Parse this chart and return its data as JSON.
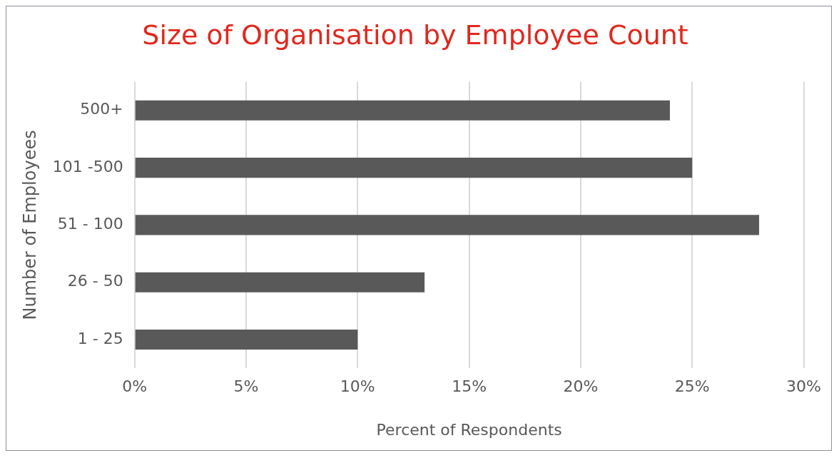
{
  "chart_data": {
    "type": "bar",
    "orientation": "horizontal",
    "title": "Size of Organisation by Employee Count",
    "xlabel": "Percent of Respondents",
    "ylabel": "Number of Employees",
    "categories": [
      "500+",
      "101 -500",
      "51 - 100",
      "26 - 50",
      "1 - 25"
    ],
    "values": [
      24,
      25,
      28,
      13,
      10
    ],
    "color": "#595959",
    "xlim": [
      0,
      30
    ],
    "xticks": [
      {
        "value": 0,
        "label": "0%"
      },
      {
        "value": 5,
        "label": "5%"
      },
      {
        "value": 10,
        "label": "10%"
      },
      {
        "value": 15,
        "label": "15%"
      },
      {
        "value": 20,
        "label": "20%"
      },
      {
        "value": 25,
        "label": "25%"
      },
      {
        "value": 30,
        "label": "30%"
      }
    ],
    "grid": "x",
    "legend": false
  }
}
